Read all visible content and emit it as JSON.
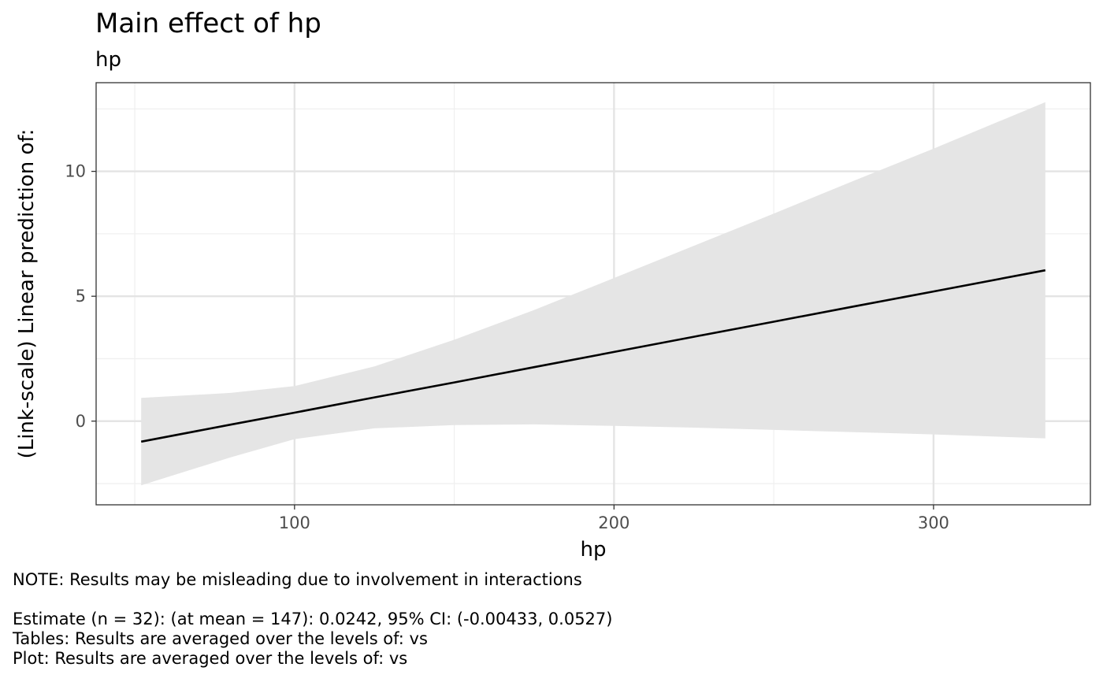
{
  "chart_data": {
    "type": "line",
    "title": "Main effect of hp",
    "subtitle": "hp",
    "xlabel": "hp",
    "ylabel": "(Link-scale) Linear prediction of:",
    "xlim": [
      37.9,
      349.1
    ],
    "ylim": [
      -3.35,
      13.55
    ],
    "x_ticks": [
      100,
      200,
      300
    ],
    "y_ticks": [
      0,
      5,
      10
    ],
    "x_minor_ticks": [
      50,
      150,
      250
    ],
    "y_minor_ticks": [
      -2.5,
      2.5,
      7.5,
      12.5
    ],
    "grid": true,
    "legend": "none",
    "line_color": "#000000",
    "ribbon_color": "#e5e5e5",
    "series": [
      {
        "x": [
          52,
          80,
          100,
          125,
          150,
          175,
          200,
          225,
          250,
          275,
          300,
          335
        ],
        "y": [
          -0.82,
          -0.14,
          0.34,
          0.95,
          1.55,
          2.16,
          2.77,
          3.38,
          3.98,
          4.59,
          5.19,
          6.04
        ],
        "lower": [
          -2.57,
          -1.45,
          -0.72,
          -0.29,
          -0.16,
          -0.13,
          -0.19,
          -0.26,
          -0.35,
          -0.44,
          -0.53,
          -0.69
        ],
        "upper": [
          0.93,
          1.13,
          1.4,
          2.19,
          3.26,
          4.45,
          5.73,
          7.02,
          8.31,
          9.62,
          10.91,
          12.77
        ]
      }
    ]
  },
  "captions": {
    "note": "NOTE: Results may be misleading due to involvement in interactions",
    "estimate": "Estimate (n = 32): (at mean = 147): 0.0242, 95% CI: (-0.00433, 0.0527)",
    "tables": "Tables: Results are averaged over the levels of: vs",
    "plot": "Plot: Results are averaged over the levels of: vs"
  }
}
